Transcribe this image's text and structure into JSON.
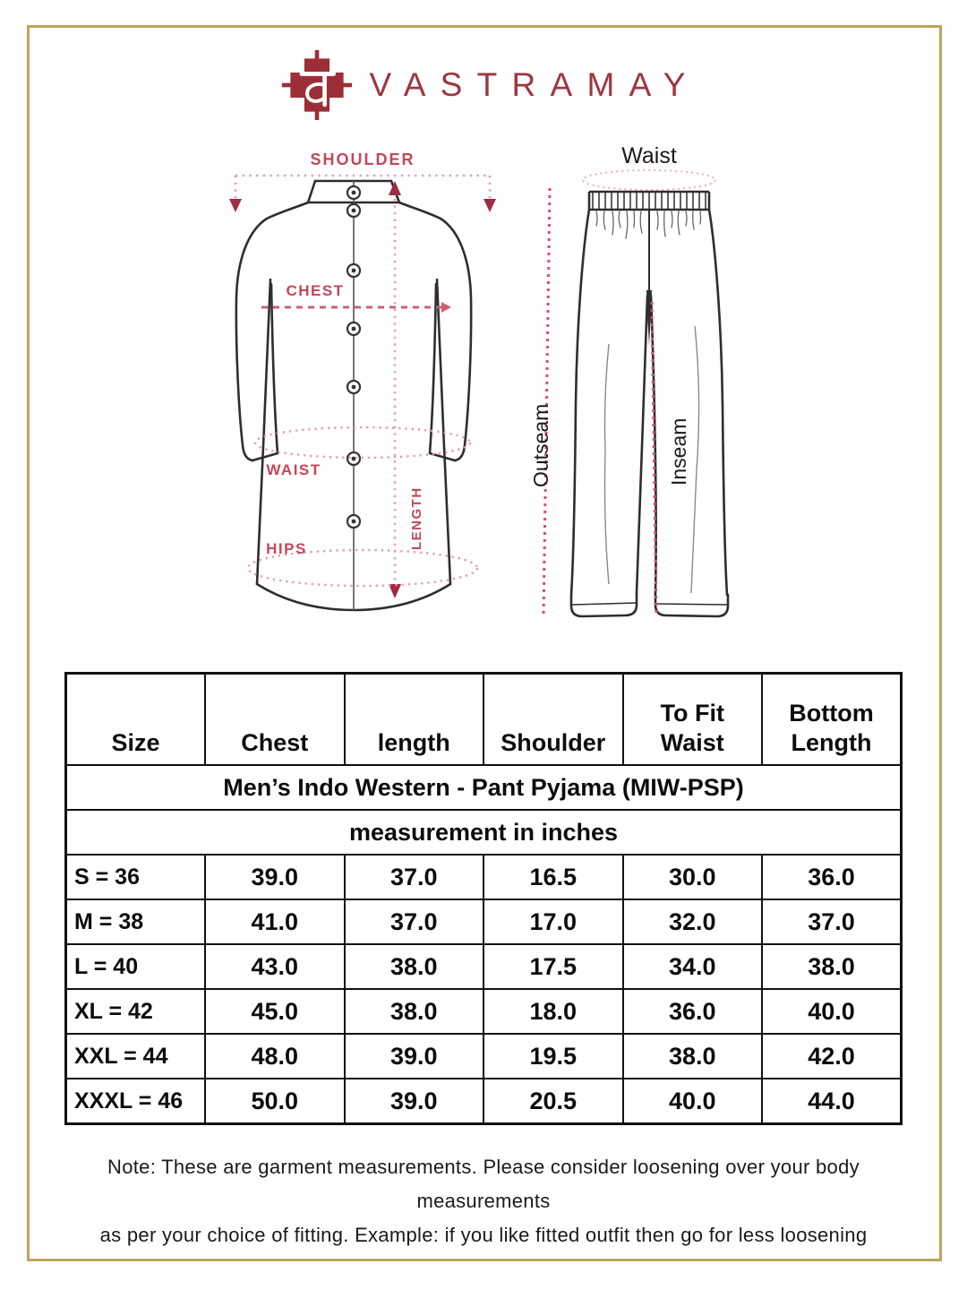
{
  "brand": {
    "wordmark": "VASTRAMAY",
    "monogram": "व"
  },
  "kurta_diagram": {
    "shoulder_label": "SHOULDER",
    "chest_label": "CHEST",
    "waist_label": "WAIST",
    "hips_label": "HIPS",
    "length_label": "LENGTH"
  },
  "pant_diagram": {
    "waist_label": "Waist",
    "outseam_label": "Outseam",
    "inseam_label": "Inseam"
  },
  "size_chart": {
    "title": "Men’s Indo Western - Pant Pyjama (MIW-PSP)",
    "subtitle": "measurement in inches",
    "columns": [
      "Size",
      "Chest",
      "length",
      "Shoulder",
      "To Fit\nWaist",
      "Bottom\nLength"
    ],
    "rows": [
      [
        "S = 36",
        "39.0",
        "37.0",
        "16.5",
        "30.0",
        "36.0"
      ],
      [
        "M = 38",
        "41.0",
        "37.0",
        "17.0",
        "32.0",
        "37.0"
      ],
      [
        "L = 40",
        "43.0",
        "38.0",
        "17.5",
        "34.0",
        "38.0"
      ],
      [
        "XL = 42",
        "45.0",
        "38.0",
        "18.0",
        "36.0",
        "40.0"
      ],
      [
        "XXL = 44",
        "48.0",
        "39.0",
        "19.5",
        "38.0",
        "42.0"
      ],
      [
        "XXXL = 46",
        "50.0",
        "39.0",
        "20.5",
        "40.0",
        "44.0"
      ]
    ]
  },
  "note": {
    "line1": "Note: These are garment measurements. Please consider loosening over your body measurements",
    "line2": "as per your choice of fitting. Example: if you like fitted outfit then go for less loosening"
  },
  "colors": {
    "brand_maroon": "#9c2e38",
    "label_red": "#c4475a",
    "dotted_pink": "#e59aa6",
    "accent_red": "#d44a60",
    "gold_border": "#c1a45c"
  }
}
